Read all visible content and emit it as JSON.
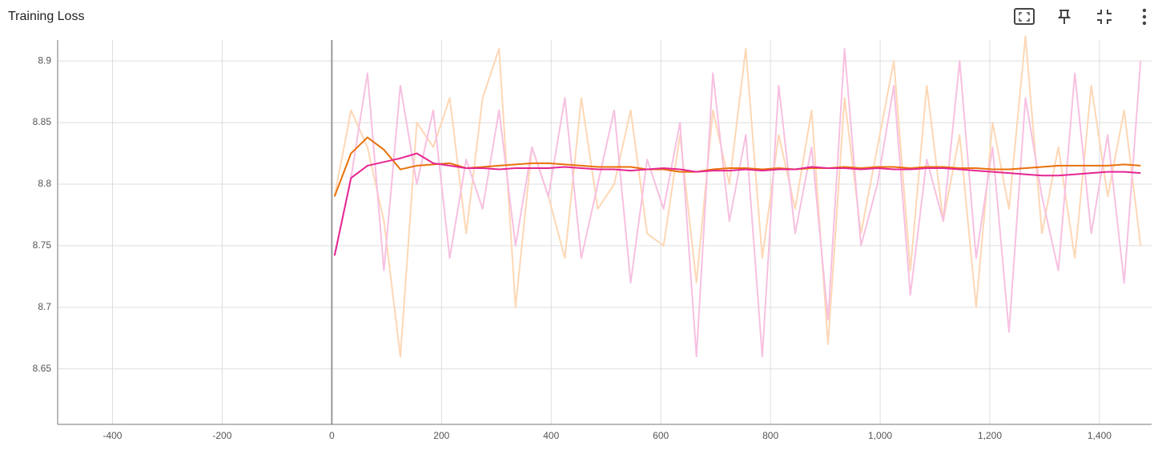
{
  "chart_data": {
    "type": "line",
    "title": "Training Loss",
    "x": [
      5,
      35,
      65,
      95,
      125,
      155,
      185,
      215,
      245,
      275,
      305,
      335,
      365,
      395,
      425,
      455,
      485,
      515,
      545,
      575,
      605,
      635,
      665,
      695,
      725,
      755,
      785,
      815,
      845,
      875,
      905,
      935,
      965,
      995,
      1025,
      1055,
      1085,
      1115,
      1145,
      1175,
      1205,
      1235,
      1265,
      1295,
      1325,
      1355,
      1385,
      1415,
      1445,
      1475
    ],
    "series": [
      {
        "color": "#fdd7b5",
        "values": [
          8.79,
          8.86,
          8.83,
          8.77,
          8.66,
          8.85,
          8.83,
          8.87,
          8.76,
          8.87,
          8.91,
          8.7,
          8.83,
          8.79,
          8.74,
          8.87,
          8.78,
          8.8,
          8.86,
          8.76,
          8.75,
          8.84,
          8.72,
          8.86,
          8.8,
          8.91,
          8.74,
          8.84,
          8.78,
          8.86,
          8.67,
          8.87,
          8.76,
          8.83,
          8.9,
          8.73,
          8.88,
          8.77,
          8.84,
          8.7,
          8.85,
          8.78,
          8.92,
          8.76,
          8.83,
          8.74,
          8.88,
          8.79,
          8.86,
          8.75
        ]
      },
      {
        "color": "#f7c0e1",
        "values": [
          8.742,
          8.805,
          8.89,
          8.73,
          8.88,
          8.8,
          8.86,
          8.74,
          8.82,
          8.78,
          8.86,
          8.75,
          8.83,
          8.79,
          8.87,
          8.74,
          8.8,
          8.86,
          8.72,
          8.82,
          8.78,
          8.85,
          8.66,
          8.89,
          8.77,
          8.84,
          8.66,
          8.88,
          8.76,
          8.83,
          8.69,
          8.91,
          8.75,
          8.8,
          8.88,
          8.71,
          8.82,
          8.77,
          8.9,
          8.74,
          8.83,
          8.68,
          8.87,
          8.79,
          8.73,
          8.89,
          8.76,
          8.84,
          8.72,
          8.9
        ]
      },
      {
        "color": "#e8710a",
        "values": [
          8.79,
          8.825,
          8.838,
          8.828,
          8.812,
          8.815,
          8.816,
          8.817,
          8.813,
          8.814,
          8.815,
          8.816,
          8.817,
          8.817,
          8.816,
          8.815,
          8.814,
          8.814,
          8.814,
          8.812,
          8.812,
          8.81,
          8.81,
          8.812,
          8.813,
          8.813,
          8.812,
          8.813,
          8.812,
          8.813,
          8.813,
          8.814,
          8.813,
          8.814,
          8.814,
          8.813,
          8.814,
          8.814,
          8.813,
          8.813,
          8.812,
          8.812,
          8.813,
          8.814,
          8.815,
          8.815,
          8.815,
          8.815,
          8.816,
          8.815
        ]
      },
      {
        "color": "#e52592",
        "values": [
          8.742,
          8.805,
          8.815,
          8.818,
          8.821,
          8.825,
          8.817,
          8.815,
          8.813,
          8.813,
          8.812,
          8.813,
          8.813,
          8.813,
          8.814,
          8.813,
          8.812,
          8.812,
          8.811,
          8.812,
          8.813,
          8.812,
          8.81,
          8.811,
          8.811,
          8.812,
          8.811,
          8.812,
          8.812,
          8.814,
          8.813,
          8.813,
          8.812,
          8.813,
          8.812,
          8.812,
          8.813,
          8.813,
          8.812,
          8.811,
          8.81,
          8.809,
          8.808,
          8.807,
          8.807,
          8.808,
          8.809,
          8.81,
          8.81,
          8.809
        ]
      }
    ],
    "xlim": [
      -500,
      1495
    ],
    "ylim": [
      8.605,
      8.917
    ],
    "xticks": [
      -400,
      -200,
      0,
      200,
      400,
      600,
      800,
      {
        "value": 1000,
        "label": "1,000"
      },
      {
        "value": 1200,
        "label": "1,200"
      },
      {
        "value": 1400,
        "label": "1,400"
      }
    ],
    "yticks": [
      8.65,
      8.7,
      8.75,
      8.8,
      8.85,
      8.9
    ],
    "grid": true
  }
}
